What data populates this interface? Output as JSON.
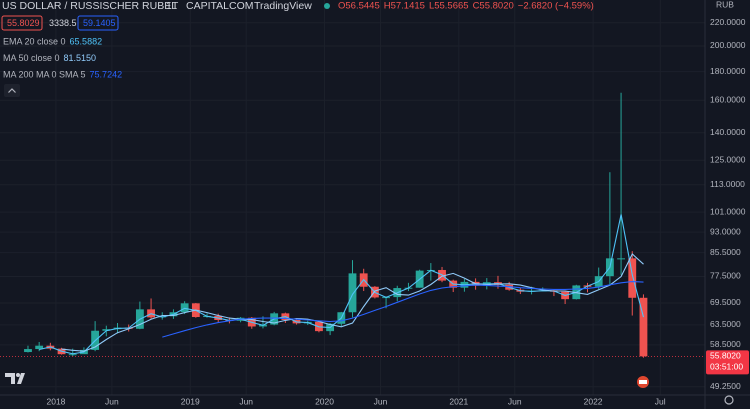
{
  "header": {
    "symbol": "US DOLLAR / RUSSISCHER RUBEL",
    "interval": "1T",
    "exchange": "CAPITALCOM",
    "source": "TradingView",
    "ohlc": [
      "O56.5445",
      "H57.1415",
      "L55.5665",
      "C55.8020",
      "−2.6820 (−4.59%)"
    ],
    "sell": "55.8029",
    "spread": "3338.5",
    "buy": "59.1405",
    "currency": "RUB"
  },
  "chart_data": {
    "type": "candlestick",
    "x": [
      "2017-10",
      "2017-11",
      "2017-12",
      "2018-01",
      "2018-02",
      "2018-03",
      "2018-04",
      "2018-05",
      "2018-06",
      "2018-07",
      "2018-08",
      "2018-09",
      "2018-10",
      "2018-11",
      "2018-12",
      "2019-01",
      "2019-02",
      "2019-03",
      "2019-04",
      "2019-05",
      "2019-06",
      "2019-07",
      "2019-08",
      "2019-09",
      "2019-10",
      "2019-11",
      "2019-12",
      "2020-01",
      "2020-02",
      "2020-03",
      "2020-04",
      "2020-05",
      "2020-06",
      "2020-07",
      "2020-08",
      "2020-09",
      "2020-10",
      "2020-11",
      "2020-12",
      "2021-01",
      "2021-02",
      "2021-03",
      "2021-04",
      "2021-05",
      "2021-06",
      "2021-07",
      "2021-08",
      "2021-09",
      "2021-10",
      "2021-11",
      "2021-12",
      "2022-01",
      "2022-02",
      "2022-03",
      "2022-04",
      "2022-05"
    ],
    "open": [
      56.8,
      57.5,
      58.3,
      57.6,
      56.3,
      56.3,
      57.3,
      62.0,
      62.4,
      62.8,
      62.5,
      67.7,
      65.5,
      65.8,
      66.9,
      69.4,
      65.6,
      65.9,
      64.8,
      64.6,
      65.4,
      63.1,
      63.6,
      66.6,
      64.8,
      63.9,
      64.3,
      61.9,
      63.8,
      66.9,
      78.5,
      74.3,
      71.1,
      71.2,
      73.9,
      74.0,
      79.4,
      79.6,
      76.2,
      74.0,
      75.8,
      74.6,
      75.7,
      74.9,
      73.4,
      72.8,
      73.1,
      73.2,
      72.8,
      70.6,
      74.7,
      74.3,
      77.6,
      83.5,
      83.5,
      71.0
    ],
    "high": [
      58.3,
      59.2,
      59.0,
      57.8,
      57.6,
      57.9,
      64.5,
      63.3,
      64.0,
      63.6,
      69.9,
      70.8,
      66.9,
      67.7,
      70.0,
      69.5,
      66.6,
      66.5,
      65.5,
      65.6,
      65.6,
      65.8,
      67.0,
      66.8,
      64.9,
      64.6,
      64.4,
      64.0,
      67.0,
      82.9,
      80.0,
      74.5,
      71.4,
      74.6,
      75.5,
      79.7,
      81.9,
      80.6,
      76.5,
      76.7,
      76.9,
      77.0,
      77.7,
      75.8,
      74.0,
      74.3,
      74.1,
      73.3,
      73.0,
      74.9,
      75.5,
      80.4,
      119.0,
      165.0,
      86.0,
      72.0
    ],
    "low": [
      56.7,
      57.0,
      57.2,
      56.2,
      55.8,
      56.4,
      57.0,
      60.6,
      61.3,
      61.8,
      62.4,
      65.0,
      64.9,
      65.1,
      66.4,
      65.4,
      65.4,
      64.2,
      63.9,
      64.2,
      62.5,
      62.6,
      63.4,
      64.0,
      63.6,
      63.5,
      61.6,
      60.9,
      63.2,
      65.5,
      73.0,
      70.8,
      68.0,
      70.0,
      73.0,
      74.0,
      76.2,
      75.7,
      72.7,
      72.8,
      73.4,
      73.5,
      73.7,
      73.1,
      72.1,
      72.0,
      72.9,
      71.5,
      69.2,
      70.5,
      72.6,
      73.5,
      74.6,
      78.0,
      66.0,
      55.5
    ],
    "close": [
      57.5,
      58.3,
      57.6,
      56.3,
      56.3,
      57.3,
      62.0,
      62.4,
      62.8,
      62.5,
      67.7,
      65.5,
      65.8,
      66.9,
      69.4,
      65.6,
      65.9,
      64.8,
      64.6,
      65.4,
      63.1,
      63.6,
      66.6,
      64.8,
      63.9,
      64.3,
      61.9,
      63.8,
      66.9,
      78.5,
      74.3,
      71.1,
      71.2,
      73.9,
      74.0,
      79.4,
      79.6,
      76.2,
      74.0,
      75.8,
      74.6,
      75.7,
      74.9,
      73.4,
      72.8,
      73.1,
      73.2,
      72.8,
      70.6,
      74.7,
      74.3,
      77.6,
      83.5,
      83.5,
      71.0,
      55.8
    ],
    "up_color": "#26a69a",
    "down_color": "#ef5350",
    "series": [
      {
        "name": "EMA 20 close 0",
        "legend_value": "65.5882",
        "color": "#4fc3f7",
        "values": [
          null,
          57.4,
          58.0,
          57.0,
          56.4,
          56.8,
          59.5,
          62.0,
          62.6,
          62.7,
          65.0,
          66.5,
          65.6,
          66.3,
          68.0,
          67.4,
          65.8,
          65.3,
          64.7,
          65.0,
          64.2,
          63.4,
          65.1,
          65.7,
          64.3,
          64.1,
          63.0,
          62.8,
          65.3,
          72.0,
          76.5,
          72.6,
          71.1,
          72.5,
          73.9,
          76.6,
          79.5,
          78.0,
          75.1,
          74.9,
          75.2,
          75.1,
          75.3,
          74.1,
          73.1,
          72.9,
          73.1,
          73.0,
          71.7,
          72.6,
          74.5,
          75.9,
          80.5,
          100.0,
          78.0,
          65.59
        ]
      },
      {
        "name": "MA 50 close 0",
        "legend_value": "81.5150",
        "color": "#90caf9",
        "values": [
          null,
          null,
          null,
          57.5,
          57.2,
          57.0,
          58.0,
          59.8,
          61.5,
          62.5,
          63.6,
          65.0,
          66.0,
          66.0,
          66.8,
          67.5,
          66.8,
          66.0,
          65.3,
          65.0,
          64.9,
          64.4,
          64.0,
          64.7,
          65.2,
          65.0,
          64.4,
          63.6,
          63.0,
          64.0,
          68.5,
          73.0,
          74.0,
          72.0,
          71.8,
          73.0,
          75.0,
          77.6,
          78.5,
          77.0,
          75.2,
          75.0,
          75.1,
          75.2,
          74.8,
          74.0,
          73.3,
          73.0,
          73.0,
          72.5,
          72.0,
          73.4,
          74.8,
          77.5,
          85.0,
          81.52
        ]
      },
      {
        "name": "MA 200 MA 0 SMA 5",
        "legend_value": "75.7242",
        "color": "#2962ff",
        "values": [
          null,
          null,
          null,
          null,
          null,
          null,
          null,
          null,
          null,
          null,
          null,
          null,
          60.4,
          61.2,
          62.0,
          62.8,
          63.5,
          64.1,
          64.6,
          65.0,
          65.2,
          65.3,
          65.3,
          65.2,
          65.0,
          64.8,
          64.6,
          64.4,
          64.6,
          65.3,
          66.3,
          67.4,
          68.5,
          69.7,
          70.9,
          72.1,
          73.2,
          73.9,
          74.3,
          74.6,
          74.8,
          74.7,
          74.5,
          74.3,
          74.0,
          73.8,
          73.6,
          73.5,
          73.5,
          73.6,
          73.8,
          74.2,
          74.9,
          75.5,
          75.9,
          75.72
        ]
      }
    ],
    "log_scale": true,
    "grid": true,
    "xlim": [
      "2017-08",
      "2022-11"
    ],
    "xticks": [
      {
        "value": "2018-01",
        "label": "2018"
      },
      {
        "value": "2018-06",
        "label": "Jun"
      },
      {
        "value": "2019-01",
        "label": "2019"
      },
      {
        "value": "2019-06",
        "label": "Jun"
      },
      {
        "value": "2020-01",
        "label": "2020"
      },
      {
        "value": "2020-06",
        "label": "Jun"
      },
      {
        "value": "2021-01",
        "label": "2021"
      },
      {
        "value": "2021-06",
        "label": "Jun"
      },
      {
        "value": "2022-01",
        "label": "2022"
      },
      {
        "value": "2022-07",
        "label": "Jul"
      }
    ],
    "ylim": [
      47.6,
      230
    ],
    "yticks": [
      {
        "value": 220,
        "label": "220.0000"
      },
      {
        "value": 200,
        "label": "200.0000"
      },
      {
        "value": 180,
        "label": "180.0000"
      },
      {
        "value": 160,
        "label": "160.0000"
      },
      {
        "value": 140,
        "label": "140.0000"
      },
      {
        "value": 125,
        "label": "125.0000"
      },
      {
        "value": 113,
        "label": "113.0000"
      },
      {
        "value": 101,
        "label": "101.0000"
      },
      {
        "value": 93,
        "label": "93.0000"
      },
      {
        "value": 85.5,
        "label": "85.5000"
      },
      {
        "value": 77.5,
        "label": "77.5000"
      },
      {
        "value": 69.5,
        "label": "69.5000"
      },
      {
        "value": 63.5,
        "label": "63.5000"
      },
      {
        "value": 58.5,
        "label": "58.5000"
      },
      {
        "value": 49.25,
        "label": "49.2500"
      }
    ],
    "price_tag": {
      "value": 55.802,
      "label": "55.8020",
      "countdown": "03:51:00",
      "color": "#f23645"
    }
  }
}
